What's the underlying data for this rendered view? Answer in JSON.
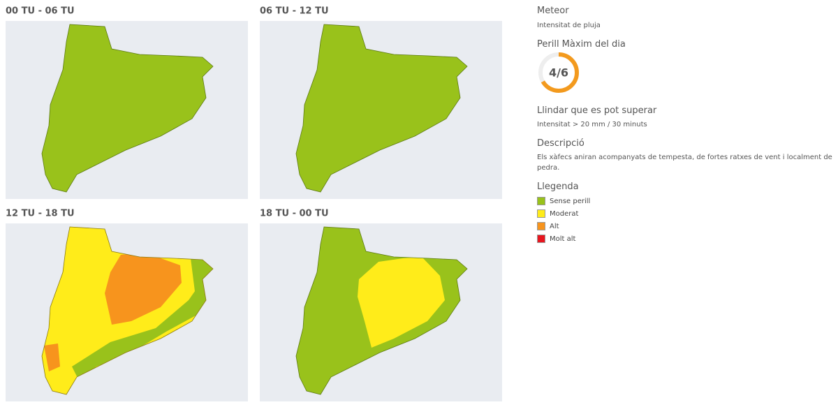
{
  "panels": [
    {
      "title": "00 TU - 06 TU"
    },
    {
      "title": "06 TU - 12 TU"
    },
    {
      "title": "12 TU - 18 TU"
    },
    {
      "title": "18 TU - 00 TU"
    }
  ],
  "sidebar": {
    "meteor": {
      "heading": "Meteor",
      "text": "Intensitat de pluja"
    },
    "danger": {
      "heading": "Perill Màxim del dia",
      "level": 4,
      "max": 6,
      "label": "4/6",
      "color": "#f39a1e"
    },
    "threshold": {
      "heading": "Llindar que es pot superar",
      "text": "Intensitat > 20 mm / 30 minuts"
    },
    "description": {
      "heading": "Descripció",
      "text": "Els xàfecs aniran acompanyats de tempesta, de fortes ratxes de vent i localment de pedra."
    },
    "legend": {
      "heading": "Llegenda",
      "items": [
        {
          "label": "Sense perill",
          "color": "#99c21b"
        },
        {
          "label": "Moderat",
          "color": "#ffec1a"
        },
        {
          "label": "Alt",
          "color": "#f7941d"
        },
        {
          "label": "Molt alt",
          "color": "#e8161f"
        }
      ]
    }
  }
}
